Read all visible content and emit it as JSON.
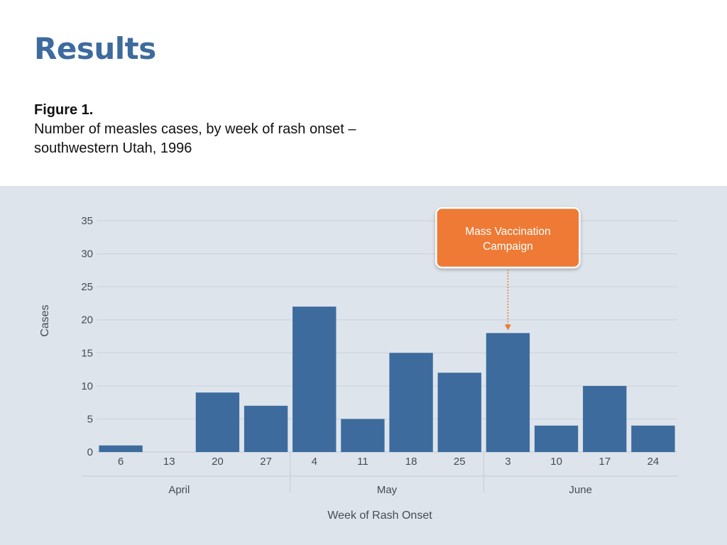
{
  "slide": {
    "title": "Results",
    "figure_label": "Figure 1.",
    "figure_caption": "Number of measles cases, by week of rash onset – southwestern Utah, 1996"
  },
  "colors": {
    "title": "#3d6b9e",
    "bar": "#3d6b9e",
    "panel_background": "#dde4eb",
    "callout": "#ee7a35"
  },
  "chart_data": {
    "type": "bar",
    "categories": [
      "6",
      "13",
      "20",
      "27",
      "4",
      "11",
      "18",
      "25",
      "3",
      "10",
      "17",
      "24"
    ],
    "values": [
      1,
      0,
      9,
      7,
      22,
      5,
      15,
      12,
      18,
      4,
      10,
      4
    ],
    "groups": [
      {
        "label": "April",
        "categories": [
          "6",
          "13",
          "20",
          "27"
        ]
      },
      {
        "label": "May",
        "categories": [
          "4",
          "11",
          "18",
          "25"
        ]
      },
      {
        "label": "June",
        "categories": [
          "3",
          "10",
          "17",
          "24"
        ]
      }
    ],
    "yticks": [
      0,
      5,
      10,
      15,
      20,
      25,
      30,
      35
    ],
    "ylim": [
      0,
      35
    ],
    "xlabel": "Week of Rash Onset",
    "ylabel": "Cases",
    "grid": true,
    "annotation": {
      "text_lines": [
        "Mass Vaccination",
        "Campaign"
      ],
      "points_to_category": "3",
      "points_to_group": "June"
    }
  }
}
